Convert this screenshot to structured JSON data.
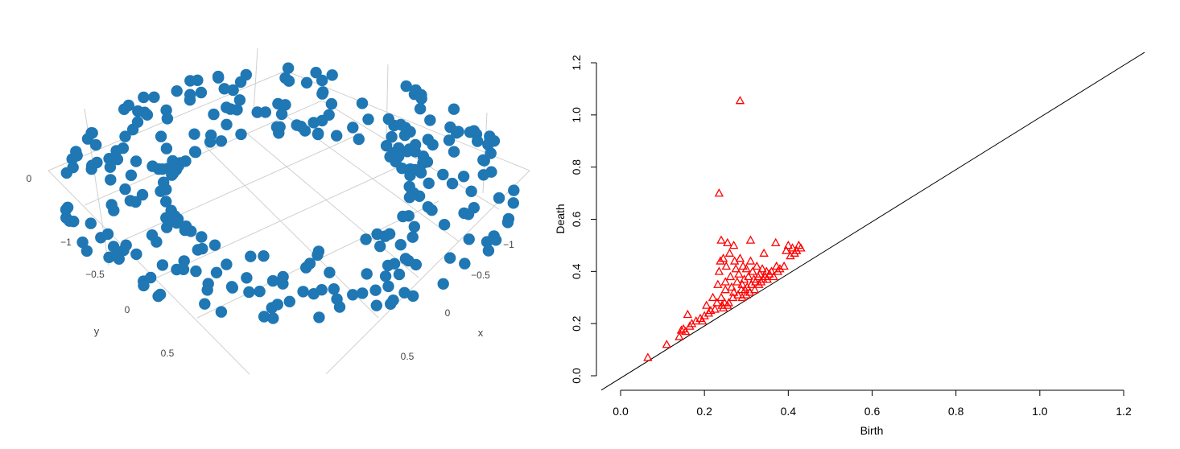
{
  "colors": {
    "point3d": "#1f77b4",
    "triangle": "#ff0000",
    "axis": "#000000",
    "grid3d": "#d0d0d0",
    "label3d": "#444444"
  },
  "chart_data": [
    {
      "type": "scatter3d",
      "x_ticks": [
        "−1",
        "−0.5",
        "0",
        "0.5"
      ],
      "y_ticks": [
        "−1",
        "−0.5",
        "0",
        "0.5"
      ],
      "z_ticks": [
        "0"
      ],
      "xlabel": "x",
      "ylabel": "y",
      "shape": "torus",
      "major_radius": 1.0,
      "minor_radius": 0.3,
      "n_points": 300,
      "marker": "filled-circle"
    },
    {
      "type": "scatter",
      "title": "",
      "xlabel": "Birth",
      "ylabel": "Death",
      "xlim": [
        0,
        1.2
      ],
      "ylim": [
        0,
        1.2
      ],
      "x_ticks": [
        "0.0",
        "0.2",
        "0.4",
        "0.6",
        "0.8",
        "1.0",
        "1.2"
      ],
      "y_ticks": [
        "0.0",
        "0.2",
        "0.4",
        "0.6",
        "0.8",
        "1.0",
        "1.2"
      ],
      "marker": "open-triangle",
      "diagonal": true,
      "points": [
        [
          0.065,
          0.07
        ],
        [
          0.11,
          0.12
        ],
        [
          0.14,
          0.15
        ],
        [
          0.145,
          0.175
        ],
        [
          0.15,
          0.18
        ],
        [
          0.155,
          0.17
        ],
        [
          0.16,
          0.235
        ],
        [
          0.165,
          0.19
        ],
        [
          0.17,
          0.2
        ],
        [
          0.18,
          0.21
        ],
        [
          0.19,
          0.22
        ],
        [
          0.195,
          0.21
        ],
        [
          0.2,
          0.23
        ],
        [
          0.205,
          0.27
        ],
        [
          0.21,
          0.24
        ],
        [
          0.215,
          0.25
        ],
        [
          0.22,
          0.3
        ],
        [
          0.225,
          0.255
        ],
        [
          0.23,
          0.28
        ],
        [
          0.232,
          0.35
        ],
        [
          0.235,
          0.7
        ],
        [
          0.235,
          0.4
        ],
        [
          0.238,
          0.44
        ],
        [
          0.24,
          0.52
        ],
        [
          0.24,
          0.3
        ],
        [
          0.242,
          0.27
        ],
        [
          0.245,
          0.26
        ],
        [
          0.245,
          0.45
        ],
        [
          0.248,
          0.28
        ],
        [
          0.25,
          0.33
        ],
        [
          0.25,
          0.36
        ],
        [
          0.252,
          0.42
        ],
        [
          0.255,
          0.51
        ],
        [
          0.255,
          0.27
        ],
        [
          0.258,
          0.28
        ],
        [
          0.26,
          0.47
        ],
        [
          0.262,
          0.38
        ],
        [
          0.265,
          0.34
        ],
        [
          0.268,
          0.3
        ],
        [
          0.27,
          0.32
        ],
        [
          0.27,
          0.5
        ],
        [
          0.272,
          0.44
        ],
        [
          0.275,
          0.41
        ],
        [
          0.278,
          0.36
        ],
        [
          0.28,
          0.31
        ],
        [
          0.282,
          0.39
        ],
        [
          0.285,
          1.055
        ],
        [
          0.285,
          0.45
        ],
        [
          0.288,
          0.33
        ],
        [
          0.29,
          0.35
        ],
        [
          0.29,
          0.3
        ],
        [
          0.292,
          0.42
        ],
        [
          0.295,
          0.37
        ],
        [
          0.297,
          0.33
        ],
        [
          0.3,
          0.31
        ],
        [
          0.3,
          0.41
        ],
        [
          0.302,
          0.34
        ],
        [
          0.305,
          0.38
        ],
        [
          0.308,
          0.32
        ],
        [
          0.31,
          0.52
        ],
        [
          0.31,
          0.44
        ],
        [
          0.312,
          0.35
        ],
        [
          0.315,
          0.4
        ],
        [
          0.318,
          0.37
        ],
        [
          0.32,
          0.33
        ],
        [
          0.322,
          0.36
        ],
        [
          0.325,
          0.42
        ],
        [
          0.328,
          0.38
        ],
        [
          0.33,
          0.35
        ],
        [
          0.332,
          0.39
        ],
        [
          0.335,
          0.36
        ],
        [
          0.338,
          0.41
        ],
        [
          0.34,
          0.37
        ],
        [
          0.342,
          0.47
        ],
        [
          0.345,
          0.38
        ],
        [
          0.348,
          0.4
        ],
        [
          0.35,
          0.37
        ],
        [
          0.355,
          0.39
        ],
        [
          0.36,
          0.4
        ],
        [
          0.365,
          0.38
        ],
        [
          0.37,
          0.51
        ],
        [
          0.372,
          0.42
        ],
        [
          0.375,
          0.4
        ],
        [
          0.38,
          0.41
        ],
        [
          0.39,
          0.42
        ],
        [
          0.395,
          0.48
        ],
        [
          0.4,
          0.5
        ],
        [
          0.405,
          0.46
        ],
        [
          0.41,
          0.49
        ],
        [
          0.415,
          0.47
        ],
        [
          0.42,
          0.48
        ],
        [
          0.425,
          0.5
        ],
        [
          0.43,
          0.49
        ]
      ]
    }
  ]
}
